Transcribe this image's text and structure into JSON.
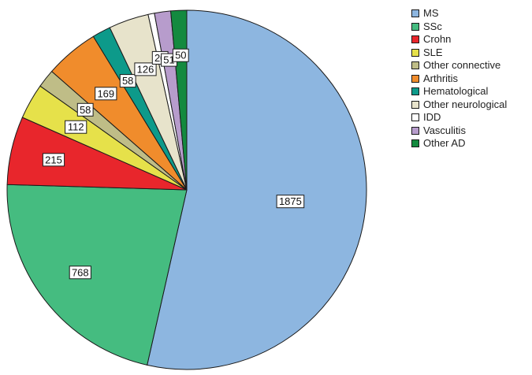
{
  "chart_data": {
    "type": "pie",
    "categories": [
      "MS",
      "SSc",
      "Crohn",
      "SLE",
      "Other connective",
      "Arthritis",
      "Hematological",
      "Other neurological",
      "IDD",
      "Vasculitis",
      "Other AD"
    ],
    "values": [
      1875,
      768,
      215,
      112,
      58,
      169,
      58,
      126,
      20,
      51,
      50
    ],
    "labels": [
      "1875",
      "768",
      "215",
      "112",
      "58",
      "169",
      "58",
      "126",
      "20",
      "51",
      "50"
    ],
    "colors": [
      "#8db6e0",
      "#45bc80",
      "#e8262c",
      "#e6e14a",
      "#bfbd87",
      "#f08c2c",
      "#0d9a8a",
      "#e7e3cb",
      "#ffffff",
      "#b79ccc",
      "#138a3f"
    ],
    "legend_position": "top-right",
    "start_angle": "12 o'clock",
    "direction": "clockwise"
  },
  "legend": {
    "items": [
      {
        "label": "MS",
        "color": "#8db6e0"
      },
      {
        "label": "SSc",
        "color": "#45bc80"
      },
      {
        "label": "Crohn",
        "color": "#e8262c"
      },
      {
        "label": "SLE",
        "color": "#e6e14a"
      },
      {
        "label": "Other connective",
        "color": "#bfbd87"
      },
      {
        "label": "Arthritis",
        "color": "#f08c2c"
      },
      {
        "label": "Hematological",
        "color": "#0d9a8a"
      },
      {
        "label": "Other neurological",
        "color": "#e7e3cb"
      },
      {
        "label": "IDD",
        "color": "#ffffff"
      },
      {
        "label": "Vasculitis",
        "color": "#b79ccc"
      },
      {
        "label": "Other AD",
        "color": "#138a3f"
      }
    ]
  }
}
